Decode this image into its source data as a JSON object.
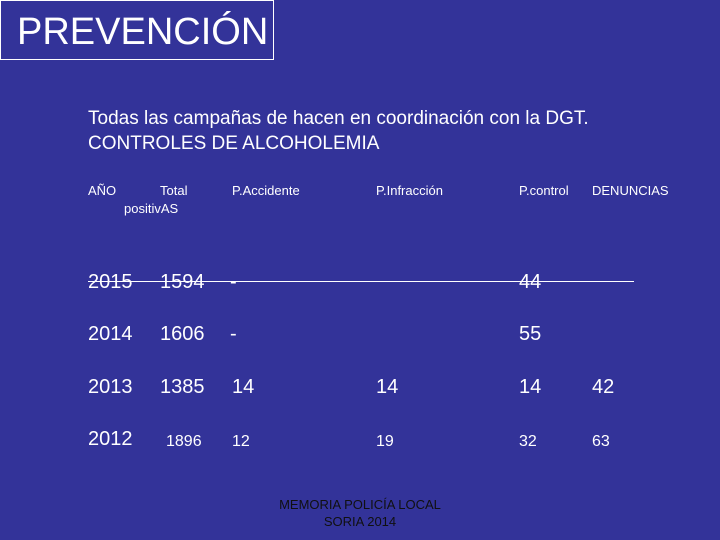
{
  "slide": {
    "title": "PREVENCIÓN",
    "intro_line1": "Todas las campañas de hacen en coordinación con la DGT.",
    "intro_line2": "CONTROLES DE ALCOHOLEMIA"
  },
  "table": {
    "headers": {
      "year": "AÑO",
      "total_line1": "Total",
      "total_line2": "positivAS",
      "accidente": "P.Accidente",
      "infraccion": "P.Infracción",
      "control": "P.control",
      "denuncias": "DENUNCIAS"
    },
    "rows": [
      {
        "year": "2015",
        "total": "1594",
        "accidente": "-",
        "infraccion": "",
        "control": "44",
        "denuncias": ""
      },
      {
        "year": "2014",
        "total": "1606",
        "accidente": "-",
        "infraccion": "",
        "control": "55",
        "denuncias": ""
      },
      {
        "year": "2013",
        "total": "1385",
        "accidente": "14",
        "infraccion": "14",
        "control": "14",
        "denuncias": "42"
      },
      {
        "year": "2012",
        "total": "1896",
        "accidente": "12",
        "infraccion": "19",
        "control": "32",
        "denuncias": "63"
      }
    ]
  },
  "footer": {
    "line1": "MEMORIA POLICÍA LOCAL",
    "line2": "SORIA 2014"
  }
}
